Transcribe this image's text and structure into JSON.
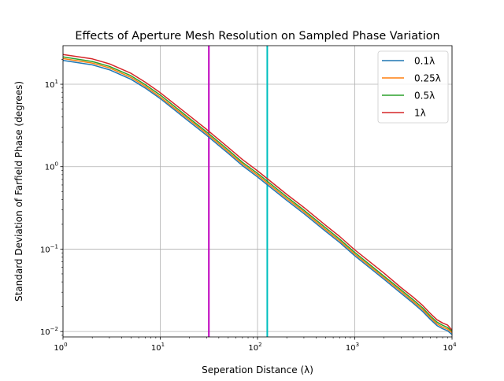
{
  "chart_data": {
    "type": "line",
    "title": "Effects of Aperture Mesh Resolution on Sampled Phase Variation",
    "xlabel": "Seperation Distance (λ)",
    "ylabel": "Standard Deviation of Farfield Phase (degrees)",
    "xscale": "log",
    "yscale": "log",
    "xlim": [
      1,
      10000
    ],
    "ylim": [
      0.0086,
      29.4
    ],
    "grid": true,
    "legend_position": "top-right",
    "x_ticks": [
      {
        "value": 1,
        "base": "10",
        "exp": "0"
      },
      {
        "value": 10,
        "base": "10",
        "exp": "1"
      },
      {
        "value": 100,
        "base": "10",
        "exp": "2"
      },
      {
        "value": 1000,
        "base": "10",
        "exp": "3"
      },
      {
        "value": 10000,
        "base": "10",
        "exp": "4"
      }
    ],
    "y_ticks": [
      {
        "value": 0.01,
        "base": "10",
        "exp": "−2"
      },
      {
        "value": 0.1,
        "base": "10",
        "exp": "−1"
      },
      {
        "value": 1,
        "base": "10",
        "exp": "0"
      },
      {
        "value": 10,
        "base": "10",
        "exp": "1"
      }
    ],
    "x": [
      1,
      2,
      3,
      5,
      7,
      10,
      20,
      30,
      50,
      70,
      100,
      200,
      300,
      500,
      700,
      1000,
      2000,
      3000,
      4000,
      5000,
      6000,
      7000,
      8000,
      9000,
      10000
    ],
    "series": [
      {
        "name": "0.1λ",
        "color": "#1f77b4",
        "values": [
          19.5,
          17.2,
          15,
          11.5,
          9,
          6.7,
          3.5,
          2.4,
          1.45,
          1.03,
          0.75,
          0.39,
          0.27,
          0.165,
          0.12,
          0.083,
          0.043,
          0.029,
          0.022,
          0.0175,
          0.014,
          0.0118,
          0.0108,
          0.0102,
          0.0092
        ]
      },
      {
        "name": "0.25λ",
        "color": "#ff7f0e",
        "values": [
          20.5,
          18.1,
          15.8,
          12.1,
          9.45,
          7.0,
          3.68,
          2.52,
          1.52,
          1.08,
          0.79,
          0.41,
          0.284,
          0.173,
          0.126,
          0.087,
          0.045,
          0.0305,
          0.023,
          0.0184,
          0.0147,
          0.0124,
          0.0113,
          0.0107,
          0.0097
        ]
      },
      {
        "name": "0.5λ",
        "color": "#2ca02c",
        "values": [
          21.5,
          18.9,
          16.5,
          12.7,
          9.9,
          7.4,
          3.85,
          2.64,
          1.6,
          1.13,
          0.83,
          0.43,
          0.297,
          0.182,
          0.132,
          0.091,
          0.047,
          0.032,
          0.0242,
          0.0193,
          0.0154,
          0.013,
          0.0119,
          0.0112,
          0.0101
        ]
      },
      {
        "name": "1λ",
        "color": "#d62728",
        "values": [
          23,
          20.3,
          17.7,
          13.6,
          10.6,
          7.9,
          4.13,
          2.83,
          1.71,
          1.22,
          0.89,
          0.46,
          0.32,
          0.195,
          0.142,
          0.098,
          0.051,
          0.034,
          0.026,
          0.0207,
          0.0165,
          0.0139,
          0.0127,
          0.012,
          0.0104
        ]
      }
    ],
    "vertical_lines": [
      {
        "x": 31.6,
        "color": "#bf00bf"
      },
      {
        "x": 126,
        "color": "#00bfbf"
      }
    ]
  }
}
